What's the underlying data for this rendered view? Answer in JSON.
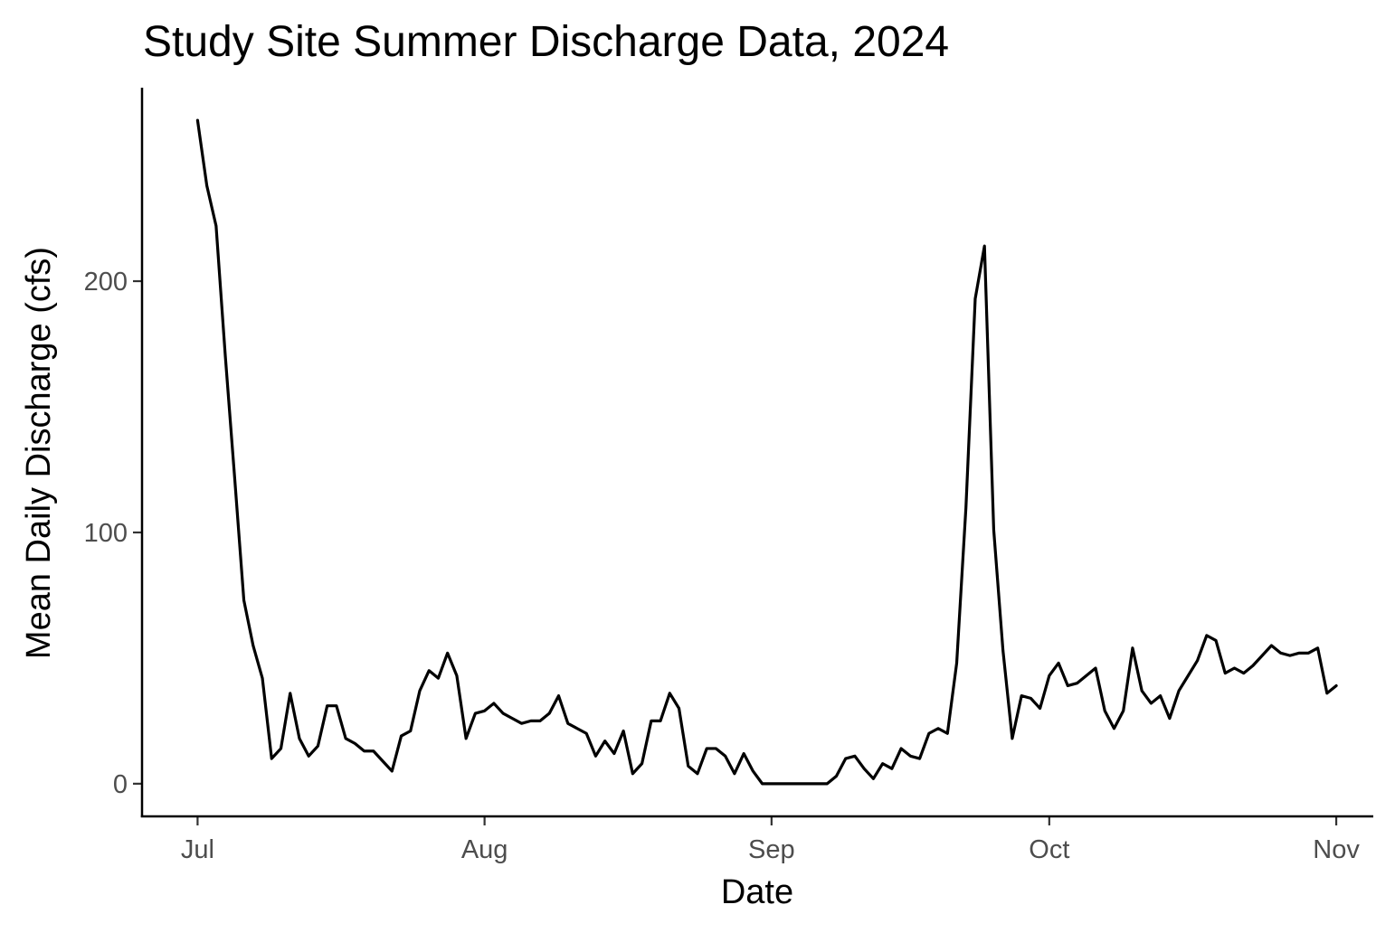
{
  "chart_data": {
    "type": "line",
    "title": "Study Site Summer Discharge Data, 2024",
    "xlabel": "Date",
    "ylabel": "Mean Daily Discharge (cfs)",
    "x_axis": {
      "ticks": [
        {
          "date": "2024-07-01",
          "label": "Jul"
        },
        {
          "date": "2024-08-01",
          "label": "Aug"
        },
        {
          "date": "2024-09-01",
          "label": "Sep"
        },
        {
          "date": "2024-10-01",
          "label": "Oct"
        },
        {
          "date": "2024-11-01",
          "label": "Nov"
        }
      ],
      "range": [
        "2024-06-25",
        "2024-11-05"
      ]
    },
    "y_axis": {
      "ticks": [
        0,
        100,
        200
      ],
      "range": [
        -13,
        277
      ]
    },
    "grid": false,
    "legend": "none",
    "series": [
      {
        "color": "#000000",
        "start_date": "2024-07-01",
        "interval_days": 1,
        "values": [
          264,
          238,
          222,
          170,
          122,
          73,
          55,
          42,
          10,
          14,
          36,
          18,
          11,
          15,
          31,
          31,
          18,
          16,
          13,
          13,
          9,
          5,
          19,
          21,
          37,
          45,
          42,
          52,
          43,
          18,
          28,
          29,
          32,
          28,
          26,
          24,
          25,
          25,
          28,
          35,
          24,
          22,
          20,
          11,
          17,
          12,
          21,
          4,
          8,
          25,
          25,
          36,
          30,
          7,
          4,
          14,
          14,
          11,
          4,
          12,
          5,
          0,
          0,
          0,
          0,
          0,
          0,
          0,
          0,
          3,
          10,
          11,
          6,
          2,
          8,
          6,
          14,
          11,
          10,
          20,
          22,
          20,
          48,
          110,
          193,
          214,
          101,
          53,
          18,
          35,
          34,
          30,
          43,
          48,
          39,
          40,
          43,
          46,
          29,
          22,
          29,
          54,
          37,
          32,
          35,
          26,
          37,
          43,
          49,
          59,
          57,
          44,
          46,
          44,
          47,
          51,
          55,
          52,
          51,
          52,
          52,
          54,
          36,
          39
        ]
      }
    ]
  }
}
